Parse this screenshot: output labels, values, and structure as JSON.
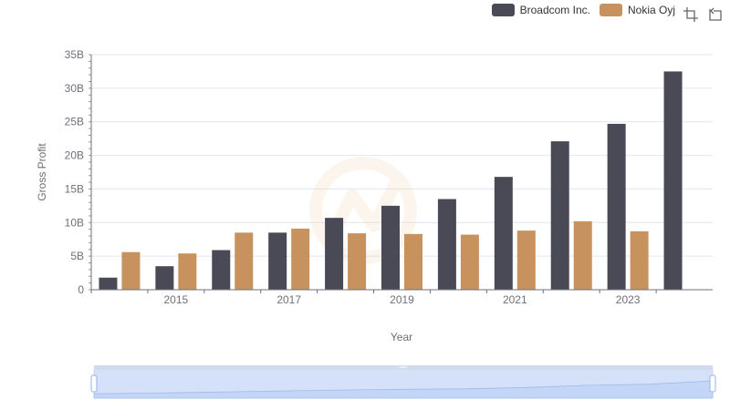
{
  "legend": {
    "items": [
      {
        "label": "Broadcom Inc.",
        "color": "#4a4a56"
      },
      {
        "label": "Nokia Oyj",
        "color": "#c8925e"
      }
    ]
  },
  "toolbox": {
    "icons": [
      "zoom-icon",
      "zoom-reset-icon"
    ]
  },
  "chart_data": {
    "type": "bar",
    "categories": [
      "2014",
      "2015",
      "2016",
      "2017",
      "2018",
      "2019",
      "2020",
      "2021",
      "2022",
      "2023",
      "2024"
    ],
    "x_tick_labels": [
      "2015",
      "2017",
      "2019",
      "2021",
      "2023"
    ],
    "series": [
      {
        "name": "Broadcom Inc.",
        "color": "#4a4a56",
        "values": [
          1.8,
          3.5,
          5.9,
          8.5,
          10.7,
          12.5,
          13.5,
          16.8,
          22.1,
          24.7,
          32.5
        ]
      },
      {
        "name": "Nokia Oyj",
        "color": "#c8925e",
        "values": [
          5.6,
          5.4,
          8.5,
          9.1,
          8.4,
          8.3,
          8.2,
          8.8,
          10.2,
          8.7,
          null
        ]
      }
    ],
    "ylim": [
      0,
      35
    ],
    "y_ticks": [
      "0",
      "5B",
      "10B",
      "15B",
      "20B",
      "25B",
      "30B",
      "35B"
    ],
    "y_tick_values": [
      0,
      5,
      10,
      15,
      20,
      25,
      30,
      35
    ],
    "xlabel": "Year",
    "ylabel": "Gross Profit",
    "grid": true,
    "legend_position": "top-right",
    "data_zoom": {
      "start_percent": 0,
      "end_percent": 100
    }
  }
}
